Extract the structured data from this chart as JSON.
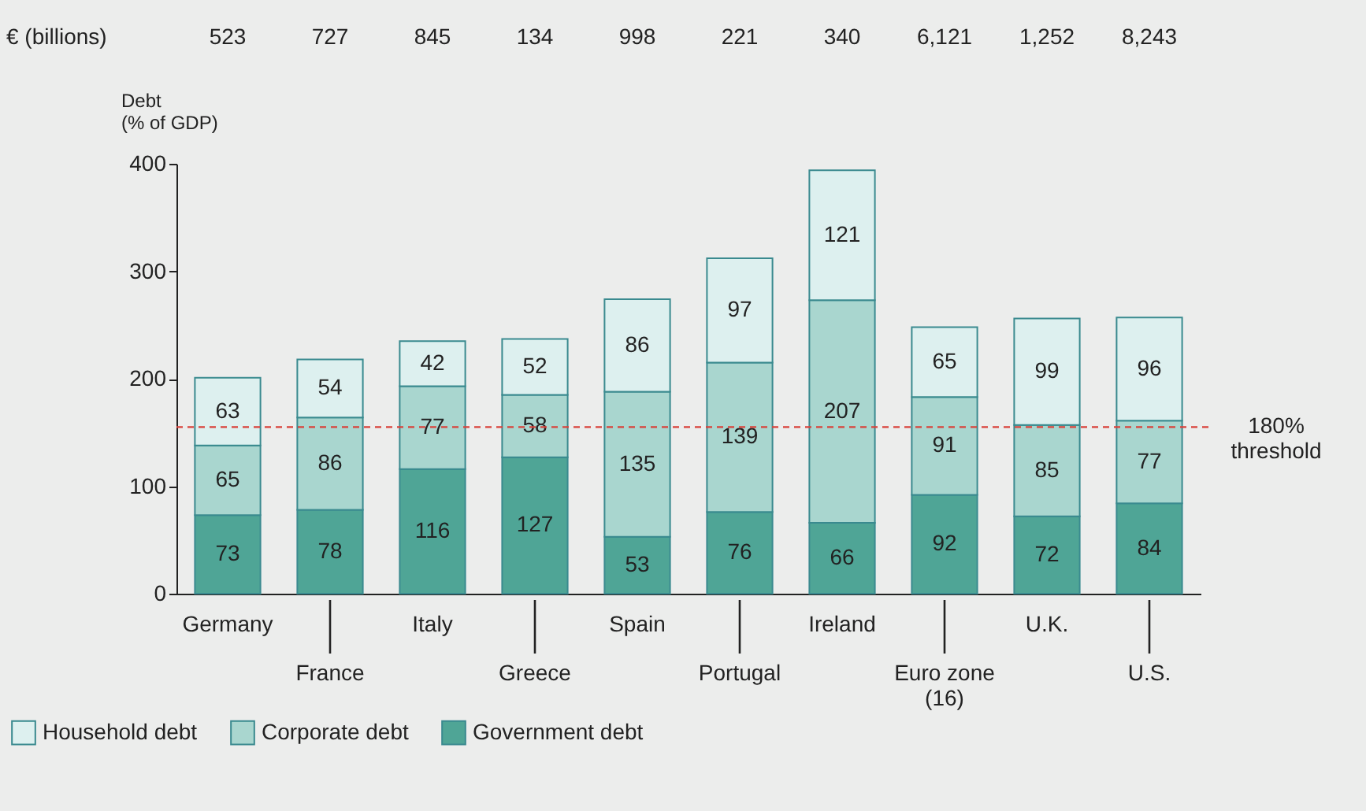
{
  "chart_data": {
    "type": "bar",
    "stacked": true,
    "categories": [
      "Germany",
      "France",
      "Italy",
      "Greece",
      "Spain",
      "Portugal",
      "Ireland",
      "Euro zone\n(16)",
      "U.K.",
      "U.S."
    ],
    "series": [
      {
        "name": "Government debt",
        "color": "#4fa596",
        "values": [
          73,
          78,
          116,
          127,
          53,
          76,
          66,
          92,
          72,
          84
        ]
      },
      {
        "name": "Corporate debt",
        "color": "#a9d6cf",
        "values": [
          65,
          86,
          77,
          58,
          135,
          139,
          207,
          91,
          85,
          77
        ]
      },
      {
        "name": "Household debt",
        "color": "#ddf0ef",
        "values": [
          63,
          54,
          42,
          52,
          86,
          97,
          121,
          65,
          99,
          96
        ]
      }
    ],
    "ylabel": "Debt\n(% of GDP)",
    "ylim": [
      0,
      400
    ],
    "yticks": [
      0,
      100,
      200,
      300,
      400
    ],
    "grid": false,
    "data_labels": true,
    "legend": "bottom left",
    "ref_lines": [
      {
        "axis": "y",
        "value": 155,
        "label": "180%\nthreshold",
        "color": "#d9413a",
        "line_style": "dashed"
      }
    ],
    "annotations": [
      "€ (billions)",
      "523",
      "727",
      "845",
      "134",
      "998",
      "221",
      "340",
      "6,121",
      "1,252",
      "8,243"
    ]
  }
}
